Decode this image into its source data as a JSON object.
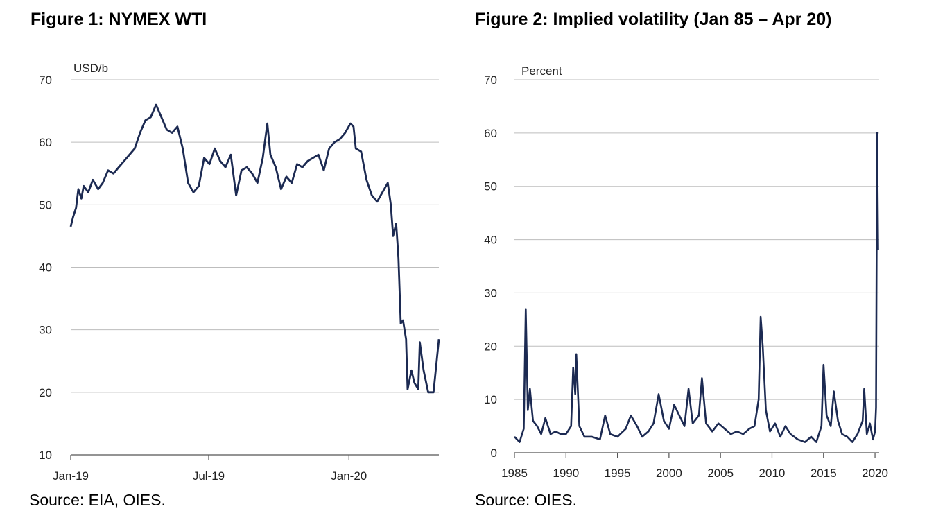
{
  "figures": [
    {
      "title": "Figure 1: NYMEX WTI",
      "source": "Source: EIA, OIES.",
      "chart_data": {
        "type": "line",
        "ylabel": "USD/b",
        "ylim": [
          10,
          70
        ],
        "yticks": [
          "10",
          "20",
          "30",
          "40",
          "50",
          "60",
          "70"
        ],
        "xlim": [
          "2019-01-01",
          "2020-04-28"
        ],
        "xticks": [
          {
            "date": "2019-01-01",
            "label": "Jan-19"
          },
          {
            "date": "2019-07-01",
            "label": "Jul-19"
          },
          {
            "date": "2020-01-01",
            "label": "Jan-20"
          }
        ],
        "grid": true,
        "series": [
          {
            "color": "#1c2a52",
            "points": [
              [
                "2019-01-01",
                46.5
              ],
              [
                "2019-01-04",
                48.0
              ],
              [
                "2019-01-08",
                49.5
              ],
              [
                "2019-01-11",
                52.5
              ],
              [
                "2019-01-15",
                51.0
              ],
              [
                "2019-01-18",
                53.0
              ],
              [
                "2019-01-24",
                52.0
              ],
              [
                "2019-01-30",
                54.0
              ],
              [
                "2019-02-06",
                52.5
              ],
              [
                "2019-02-12",
                53.5
              ],
              [
                "2019-02-19",
                55.5
              ],
              [
                "2019-02-26",
                55.0
              ],
              [
                "2019-03-05",
                56.0
              ],
              [
                "2019-03-12",
                57.0
              ],
              [
                "2019-03-19",
                58.0
              ],
              [
                "2019-03-26",
                59.0
              ],
              [
                "2019-04-02",
                61.5
              ],
              [
                "2019-04-09",
                63.5
              ],
              [
                "2019-04-16",
                64.0
              ],
              [
                "2019-04-23",
                66.0
              ],
              [
                "2019-04-30",
                64.0
              ],
              [
                "2019-05-07",
                62.0
              ],
              [
                "2019-05-14",
                61.5
              ],
              [
                "2019-05-21",
                62.5
              ],
              [
                "2019-05-28",
                59.0
              ],
              [
                "2019-06-04",
                53.5
              ],
              [
                "2019-06-11",
                52.0
              ],
              [
                "2019-06-18",
                53.0
              ],
              [
                "2019-06-25",
                57.5
              ],
              [
                "2019-07-02",
                56.5
              ],
              [
                "2019-07-09",
                59.0
              ],
              [
                "2019-07-16",
                57.0
              ],
              [
                "2019-07-23",
                56.0
              ],
              [
                "2019-07-30",
                58.0
              ],
              [
                "2019-08-06",
                51.5
              ],
              [
                "2019-08-13",
                55.5
              ],
              [
                "2019-08-20",
                56.0
              ],
              [
                "2019-08-27",
                55.0
              ],
              [
                "2019-09-03",
                53.5
              ],
              [
                "2019-09-10",
                57.5
              ],
              [
                "2019-09-16",
                63.0
              ],
              [
                "2019-09-20",
                58.0
              ],
              [
                "2019-09-27",
                56.0
              ],
              [
                "2019-10-04",
                52.5
              ],
              [
                "2019-10-11",
                54.5
              ],
              [
                "2019-10-18",
                53.5
              ],
              [
                "2019-10-25",
                56.5
              ],
              [
                "2019-11-01",
                56.0
              ],
              [
                "2019-11-08",
                57.0
              ],
              [
                "2019-11-15",
                57.5
              ],
              [
                "2019-11-22",
                58.0
              ],
              [
                "2019-11-29",
                55.5
              ],
              [
                "2019-12-06",
                59.0
              ],
              [
                "2019-12-13",
                60.0
              ],
              [
                "2019-12-20",
                60.5
              ],
              [
                "2019-12-27",
                61.5
              ],
              [
                "2020-01-03",
                63.0
              ],
              [
                "2020-01-07",
                62.5
              ],
              [
                "2020-01-10",
                59.0
              ],
              [
                "2020-01-17",
                58.5
              ],
              [
                "2020-01-24",
                54.0
              ],
              [
                "2020-01-31",
                51.5
              ],
              [
                "2020-02-07",
                50.5
              ],
              [
                "2020-02-14",
                52.0
              ],
              [
                "2020-02-21",
                53.5
              ],
              [
                "2020-02-25",
                50.0
              ],
              [
                "2020-02-28",
                45.0
              ],
              [
                "2020-03-03",
                47.0
              ],
              [
                "2020-03-06",
                41.5
              ],
              [
                "2020-03-09",
                31.0
              ],
              [
                "2020-03-12",
                31.5
              ],
              [
                "2020-03-16",
                28.5
              ],
              [
                "2020-03-18",
                20.5
              ],
              [
                "2020-03-23",
                23.5
              ],
              [
                "2020-03-27",
                21.5
              ],
              [
                "2020-04-01",
                20.5
              ],
              [
                "2020-04-03",
                28.0
              ],
              [
                "2020-04-08",
                23.5
              ],
              [
                "2020-04-14",
                20.0
              ],
              [
                "2020-04-21",
                20.0
              ],
              [
                "2020-04-28",
                28.5
              ]
            ]
          }
        ]
      }
    },
    {
      "title": "Figure 2: Implied volatility (Jan 85 – Apr 20)",
      "source": "Source: OIES.",
      "chart_data": {
        "type": "line",
        "ylabel": "Percent",
        "ylim": [
          0,
          70
        ],
        "yticks": [
          "0",
          "10",
          "20",
          "30",
          "40",
          "50",
          "60",
          "70"
        ],
        "xlim": [
          1985,
          2020.4
        ],
        "xticks": [
          "1985",
          "1990",
          "1995",
          "2000",
          "2005",
          "2010",
          "2015",
          "2020"
        ],
        "grid": true,
        "series": [
          {
            "color": "#1c2a52",
            "points": [
              [
                1985.0,
                3.0
              ],
              [
                1985.5,
                2.0
              ],
              [
                1985.9,
                4.5
              ],
              [
                1986.1,
                27.0
              ],
              [
                1986.3,
                8.0
              ],
              [
                1986.5,
                12.0
              ],
              [
                1986.8,
                6.0
              ],
              [
                1987.2,
                5.0
              ],
              [
                1987.6,
                3.5
              ],
              [
                1988.0,
                6.5
              ],
              [
                1988.5,
                3.5
              ],
              [
                1989.0,
                4.0
              ],
              [
                1989.5,
                3.5
              ],
              [
                1990.0,
                3.5
              ],
              [
                1990.5,
                5.0
              ],
              [
                1990.7,
                16.0
              ],
              [
                1990.9,
                11.0
              ],
              [
                1991.0,
                18.5
              ],
              [
                1991.3,
                5.0
              ],
              [
                1991.8,
                3.0
              ],
              [
                1992.5,
                3.0
              ],
              [
                1993.3,
                2.5
              ],
              [
                1993.8,
                7.0
              ],
              [
                1994.3,
                3.5
              ],
              [
                1995.0,
                3.0
              ],
              [
                1995.8,
                4.5
              ],
              [
                1996.3,
                7.0
              ],
              [
                1996.9,
                5.0
              ],
              [
                1997.4,
                3.0
              ],
              [
                1998.0,
                4.0
              ],
              [
                1998.5,
                5.5
              ],
              [
                1999.0,
                11.0
              ],
              [
                1999.5,
                6.0
              ],
              [
                2000.0,
                4.5
              ],
              [
                2000.5,
                9.0
              ],
              [
                2001.0,
                7.0
              ],
              [
                2001.5,
                5.0
              ],
              [
                2001.9,
                12.0
              ],
              [
                2002.3,
                5.5
              ],
              [
                2002.9,
                7.0
              ],
              [
                2003.2,
                14.0
              ],
              [
                2003.6,
                5.5
              ],
              [
                2004.2,
                4.0
              ],
              [
                2004.8,
                5.5
              ],
              [
                2005.4,
                4.5
              ],
              [
                2006.0,
                3.5
              ],
              [
                2006.6,
                4.0
              ],
              [
                2007.2,
                3.5
              ],
              [
                2007.8,
                4.5
              ],
              [
                2008.3,
                5.0
              ],
              [
                2008.7,
                10.0
              ],
              [
                2008.9,
                25.5
              ],
              [
                2009.1,
                20.0
              ],
              [
                2009.4,
                8.0
              ],
              [
                2009.8,
                4.0
              ],
              [
                2010.3,
                5.5
              ],
              [
                2010.8,
                3.0
              ],
              [
                2011.3,
                5.0
              ],
              [
                2011.8,
                3.5
              ],
              [
                2012.5,
                2.5
              ],
              [
                2013.2,
                2.0
              ],
              [
                2013.8,
                3.0
              ],
              [
                2014.3,
                2.0
              ],
              [
                2014.8,
                5.0
              ],
              [
                2015.0,
                16.5
              ],
              [
                2015.3,
                7.0
              ],
              [
                2015.7,
                5.0
              ],
              [
                2016.0,
                11.5
              ],
              [
                2016.4,
                6.0
              ],
              [
                2016.8,
                3.5
              ],
              [
                2017.3,
                3.0
              ],
              [
                2017.8,
                2.0
              ],
              [
                2018.3,
                3.5
              ],
              [
                2018.8,
                6.0
              ],
              [
                2018.95,
                12.0
              ],
              [
                2019.2,
                3.5
              ],
              [
                2019.5,
                5.5
              ],
              [
                2019.8,
                2.5
              ],
              [
                2020.0,
                4.0
              ],
              [
                2020.1,
                8.5
              ],
              [
                2020.2,
                60.0
              ],
              [
                2020.3,
                38.0
              ]
            ]
          }
        ]
      }
    }
  ]
}
